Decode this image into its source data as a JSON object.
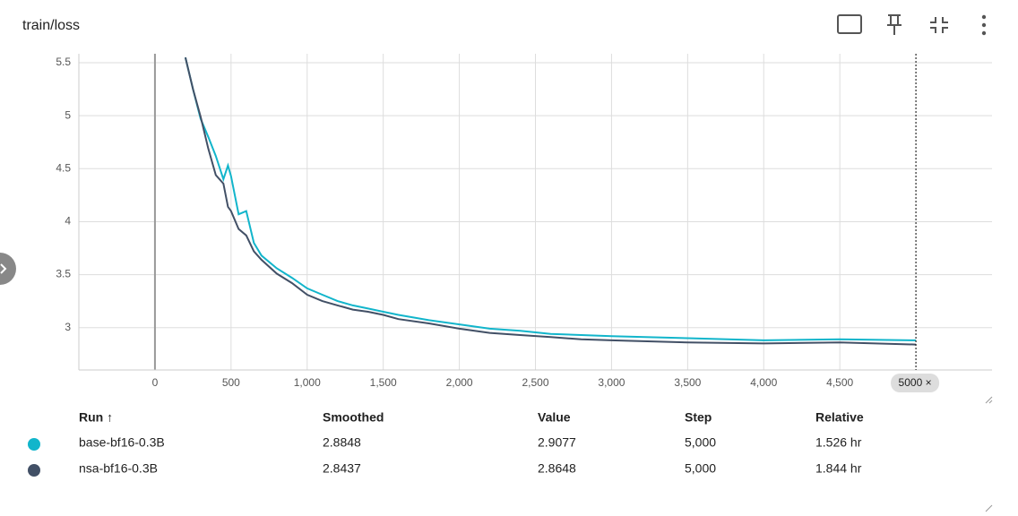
{
  "chart_data": {
    "type": "line",
    "title": "train/loss",
    "x": [
      200,
      250,
      300,
      350,
      400,
      450,
      480,
      500,
      550,
      600,
      650,
      700,
      800,
      900,
      1000,
      1100,
      1200,
      1300,
      1400,
      1500,
      1600,
      1800,
      2000,
      2200,
      2400,
      2600,
      2800,
      3000,
      3500,
      4000,
      4500,
      5000
    ],
    "series": [
      {
        "name": "base-bf16-0.3B",
        "color": "#12b5cb",
        "values": [
          5.55,
          5.25,
          4.97,
          4.8,
          4.62,
          4.4,
          4.53,
          4.43,
          4.07,
          4.1,
          3.8,
          3.68,
          3.56,
          3.47,
          3.37,
          3.31,
          3.25,
          3.21,
          3.18,
          3.15,
          3.12,
          3.07,
          3.03,
          2.99,
          2.97,
          2.94,
          2.93,
          2.92,
          2.9,
          2.88,
          2.89,
          2.88
        ],
        "smoothed": 2.8848,
        "value": 2.9077,
        "step": "5,000",
        "relative": "1.526 hr"
      },
      {
        "name": "nsa-bf16-0.3B",
        "color": "#425066",
        "values": [
          5.55,
          5.25,
          4.99,
          4.69,
          4.44,
          4.36,
          4.14,
          4.1,
          3.93,
          3.87,
          3.72,
          3.64,
          3.51,
          3.42,
          3.31,
          3.25,
          3.21,
          3.17,
          3.15,
          3.12,
          3.08,
          3.04,
          2.99,
          2.95,
          2.93,
          2.91,
          2.89,
          2.88,
          2.86,
          2.85,
          2.86,
          2.84
        ],
        "smoothed": 2.8437,
        "value": 2.8648,
        "step": "5,000",
        "relative": "1.844 hr"
      }
    ],
    "xlim": [
      -500,
      5500
    ],
    "ylim": [
      2.6,
      5.585
    ],
    "xticks": [
      0,
      500,
      {
        "value": 1000,
        "label": "1,000"
      },
      {
        "value": 1500,
        "label": "1,500"
      },
      {
        "value": 2000,
        "label": "2,000"
      },
      {
        "value": 2500,
        "label": "2,500"
      },
      {
        "value": 3000,
        "label": "3,000"
      },
      {
        "value": 3500,
        "label": "3,500"
      },
      {
        "value": 4000,
        "label": "4,000"
      },
      {
        "value": 4500,
        "label": "4,500"
      }
    ],
    "yticks": [
      3,
      3.5,
      4,
      4.5,
      5,
      5.5
    ],
    "grid": true,
    "cursor": {
      "value": 5000,
      "label": "5000 ×"
    },
    "table_headers": [
      "Run ↑",
      "Smoothed",
      "Value",
      "Step",
      "Relative"
    ]
  }
}
